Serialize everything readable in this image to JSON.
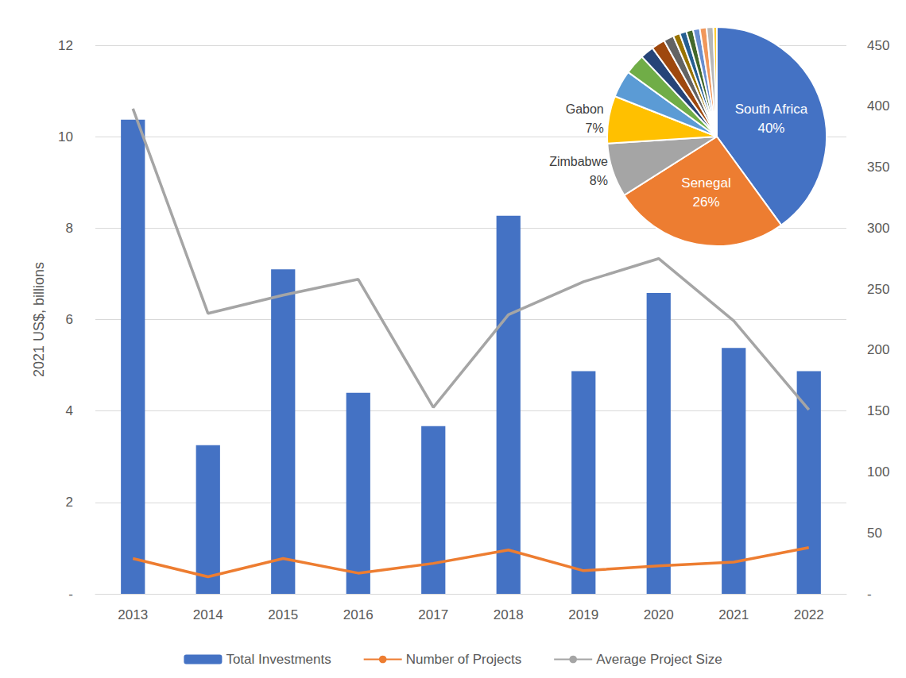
{
  "chart_data": [
    {
      "type": "bar",
      "ylabel": "2021 US$, billions",
      "categories": [
        "2013",
        "2014",
        "2015",
        "2016",
        "2017",
        "2018",
        "2019",
        "2020",
        "2021",
        "2022"
      ],
      "series": [
        {
          "name": "Total Investments",
          "type": "bar",
          "color": "#4472c4",
          "values": [
            10.37,
            3.25,
            7.1,
            4.4,
            3.67,
            8.27,
            4.87,
            6.58,
            5.38,
            4.87
          ]
        },
        {
          "name": "Number of Projects",
          "type": "line",
          "color": "#ed7d31",
          "axis": "y2",
          "values": [
            29,
            14,
            29,
            17,
            25,
            36,
            19,
            23,
            26,
            38
          ]
        },
        {
          "name": "Average Project Size",
          "type": "line",
          "color": "#a5a5a5",
          "axis": "y2",
          "values": [
            398,
            230,
            245,
            258,
            153,
            229,
            256,
            275,
            224,
            151
          ]
        }
      ],
      "ylim": [
        0,
        12
      ],
      "yticks": [
        {
          "value": 0,
          "label": "-"
        },
        2,
        4,
        6,
        8,
        10,
        12
      ],
      "y2lim": [
        0,
        450
      ],
      "y2ticks": [
        {
          "value": 0,
          "label": "-"
        },
        50,
        100,
        150,
        200,
        250,
        300,
        350,
        400,
        450
      ],
      "grid": true,
      "legend": "bottom"
    },
    {
      "type": "pie",
      "labels": [
        "South Africa",
        "Senegal",
        "Zimbabwe",
        "Gabon",
        null,
        null,
        null,
        null,
        null,
        null,
        null,
        null,
        null,
        null,
        null,
        null
      ],
      "values": [
        40,
        26,
        8,
        7,
        4,
        3,
        2,
        2,
        1.5,
        1,
        1,
        1,
        1,
        1,
        1,
        0.5
      ],
      "value_labels": [
        "40%",
        "26%",
        "8%",
        "7%",
        null,
        null,
        null,
        null,
        null,
        null,
        null,
        null,
        null,
        null,
        null,
        null
      ],
      "colors": [
        "#4472c4",
        "#ed7d31",
        "#a5a5a5",
        "#ffc000",
        "#5b9bd5",
        "#70ad47",
        "#264478",
        "#9e480e",
        "#636363",
        "#997300",
        "#255e91",
        "#43682b",
        "#698ed0",
        "#f1975a",
        "#b7b7b7",
        "#ffcd33"
      ]
    }
  ]
}
